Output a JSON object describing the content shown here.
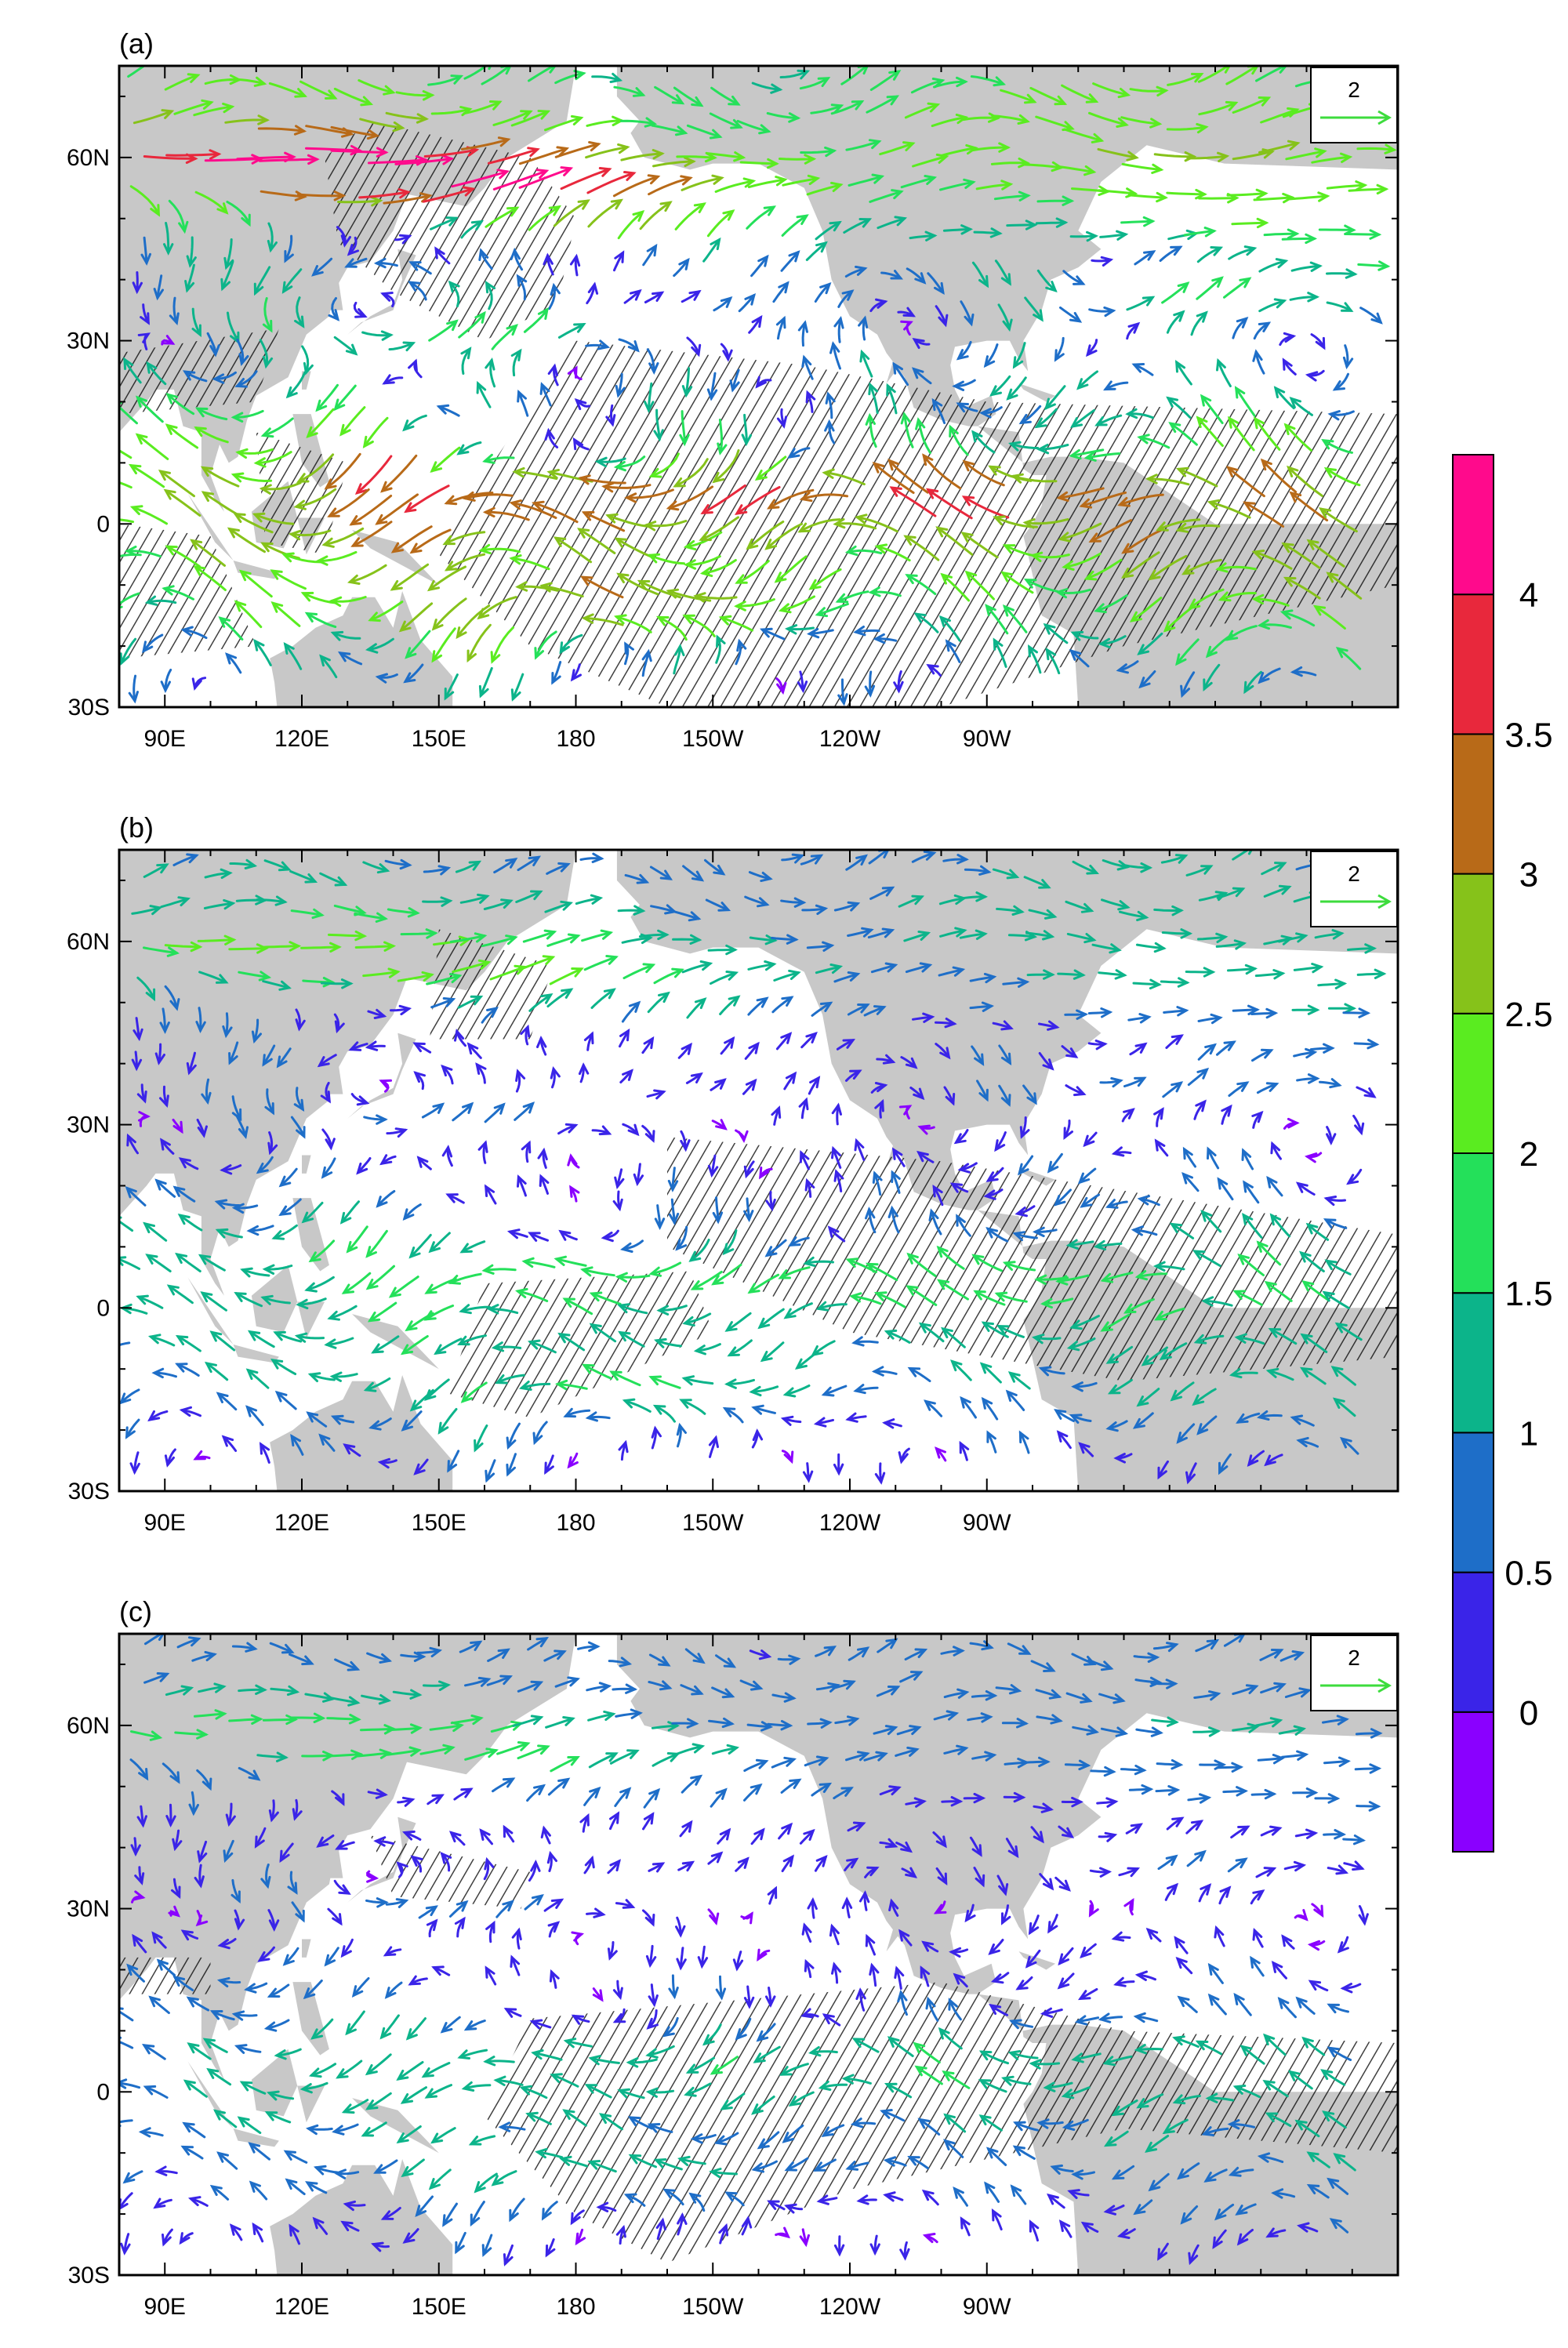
{
  "figure": {
    "panels": [
      {
        "label": "(a)",
        "strength": 1.0
      },
      {
        "label": "(b)",
        "strength": 0.55
      },
      {
        "label": "(c)",
        "strength": 0.45
      }
    ],
    "lon_ticks": [
      "90E",
      "120E",
      "150E",
      "180",
      "150W",
      "120W",
      "90W"
    ],
    "lat_ticks": [
      "60N",
      "30N",
      "0",
      "30S"
    ],
    "reference_vector": {
      "label": "2",
      "color": "#3ddc3d"
    },
    "colorbar": {
      "labels": [
        "0",
        "0.5",
        "1",
        "1.5",
        "2",
        "2.5",
        "3",
        "3.5",
        "4"
      ],
      "colors": [
        "#8a00ff",
        "#3a24e8",
        "#1e6ec8",
        "#0cb48a",
        "#24e05a",
        "#5aec20",
        "#86c21a",
        "#b86a18",
        "#e8283c",
        "#ff0a8c"
      ]
    },
    "colors": {
      "land": "#c8c8c8",
      "hatch": "#000000"
    }
  }
}
